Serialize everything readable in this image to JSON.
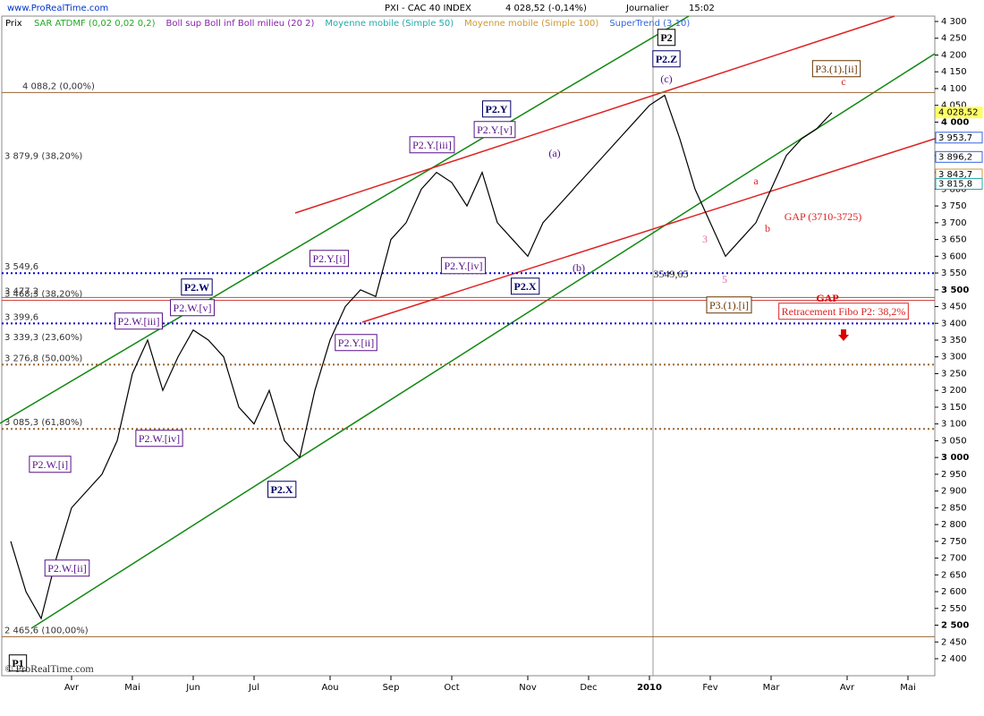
{
  "header": {
    "site": "www.ProRealTime.com",
    "title": "PXI - CAC 40 INDEX",
    "last": "4 028,52 (-0,14%)",
    "period": "Journalier",
    "time": "15:02"
  },
  "chart_data": {
    "type": "line",
    "indicators": [
      {
        "name": "SAR ATDMF (0,02 0,02 0,2)",
        "color": "#22aa22"
      },
      {
        "name": "Boll sup Boll inf Boll milieu (20 2)",
        "color": "#8822aa"
      },
      {
        "name": "Moyenne mobile (Simple 50)",
        "color": "#22aaaa"
      },
      {
        "name": "Moyenne mobile (Simple 100)",
        "color": "#cc9933"
      },
      {
        "name": "SuperTrend (3 10)",
        "color": "#3366dd"
      }
    ],
    "categories": [
      null,
      null,
      null,
      null,
      "Avr",
      null,
      null,
      null,
      "Mai",
      null,
      null,
      null,
      "Jun",
      null,
      null,
      null,
      "Jul",
      null,
      null,
      null,
      null,
      "Aou",
      null,
      null,
      null,
      "Sep",
      null,
      null,
      null,
      "Oct",
      null,
      null,
      null,
      null,
      "Nov",
      null,
      null,
      null,
      "Dec",
      null,
      null,
      null,
      "2010",
      null,
      null,
      null,
      "Fev",
      null,
      null,
      null,
      "Mar",
      null,
      null,
      null,
      null,
      "Avr",
      null,
      null,
      null,
      "Mai"
    ],
    "series": [
      {
        "name": "Prix",
        "color": "#000000",
        "values": [
          2750,
          2600,
          2520,
          2700,
          2850,
          2900,
          2950,
          3050,
          3250,
          3350,
          3200,
          3300,
          3380,
          3350,
          3300,
          3150,
          3100,
          3200,
          3050,
          3000,
          3200,
          3350,
          3450,
          3500,
          3480,
          3650,
          3700,
          3800,
          3850,
          3820,
          3750,
          3850,
          3700,
          3650,
          3600,
          3700,
          3750,
          3800,
          3850,
          3900,
          3950,
          4000,
          4050,
          4080,
          3950,
          3800,
          3700,
          3600,
          3650,
          3700,
          3800,
          3900,
          3950,
          3980,
          4028.52,
          null,
          null,
          null,
          null,
          null
        ]
      }
    ],
    "ylim": [
      2400,
      4300
    ],
    "yticks": [
      {
        "value": 2400,
        "label": "2 400"
      },
      {
        "value": 2450,
        "label": "2 450"
      },
      {
        "value": 2500,
        "label": "2 500"
      },
      {
        "value": 2550,
        "label": "2 550"
      },
      {
        "value": 2600,
        "label": "2 600"
      },
      {
        "value": 2650,
        "label": "2 650"
      },
      {
        "value": 2700,
        "label": "2 700"
      },
      {
        "value": 2750,
        "label": "2 750"
      },
      {
        "value": 2800,
        "label": "2 800"
      },
      {
        "value": 2850,
        "label": "2 850"
      },
      {
        "value": 2900,
        "label": "2 900"
      },
      {
        "value": 2950,
        "label": "2 950"
      },
      {
        "value": 3000,
        "label": "3 000"
      },
      {
        "value": 3050,
        "label": "3 050"
      },
      {
        "value": 3100,
        "label": "3 100"
      },
      {
        "value": 3150,
        "label": "3 150"
      },
      {
        "value": 3200,
        "label": "3 200"
      },
      {
        "value": 3250,
        "label": "3 250"
      },
      {
        "value": 3300,
        "label": "3 300"
      },
      {
        "value": 3350,
        "label": "3 350"
      },
      {
        "value": 3400,
        "label": "3 400"
      },
      {
        "value": 3450,
        "label": "3 450"
      },
      {
        "value": 3500,
        "label": "3 500"
      },
      {
        "value": 3550,
        "label": "3 550"
      },
      {
        "value": 3600,
        "label": "3 600"
      },
      {
        "value": 3650,
        "label": "3 650"
      },
      {
        "value": 3700,
        "label": "3 700"
      },
      {
        "value": 3750,
        "label": "3 750"
      },
      {
        "value": 3800,
        "label": "3 800"
      },
      {
        "value": 3850,
        "label": "3 850"
      },
      {
        "value": 3900,
        "label": "3 900"
      },
      {
        "value": 3950,
        "label": "3 950"
      },
      {
        "value": 4000,
        "label": "4 000"
      },
      {
        "value": 4050,
        "label": "4 050"
      },
      {
        "value": 4100,
        "label": "4 100"
      },
      {
        "value": 4150,
        "label": "4 150"
      },
      {
        "value": 4200,
        "label": "4 200"
      },
      {
        "value": 4250,
        "label": "4 250"
      },
      {
        "value": 4300,
        "label": "4 300"
      }
    ],
    "levels": [
      {
        "value": 4088.2,
        "label": "4 088,2 (0,00%)",
        "color": "#996633",
        "style": "solid"
      },
      {
        "value": 3879.9,
        "label": "3 879,9 (38,20%)",
        "color": "#996633",
        "style": "none"
      },
      {
        "value": 3549.6,
        "label": "3 549,6",
        "color": "#0000cc",
        "style": "dotted"
      },
      {
        "value": 3477.2,
        "label": "3 477,2",
        "color": "#996633",
        "style": "solid"
      },
      {
        "value": 3468.3,
        "label": "3 468,3 (38,20%)",
        "color": "#cc3333",
        "style": "solid"
      },
      {
        "value": 3399.6,
        "label": "3 399,6",
        "color": "#0000cc",
        "style": "dotted"
      },
      {
        "value": 3339.3,
        "label": "3 339,3 (23,60%)",
        "color": "#996633",
        "style": "none"
      },
      {
        "value": 3276.8,
        "label": "3 276,8 (50,00%)",
        "color": "#996633",
        "style": "dotted"
      },
      {
        "value": 3085.3,
        "label": "3 085,3 (61,80%)",
        "color": "#996633",
        "style": "dotted"
      },
      {
        "value": 2465.6,
        "label": "2 465,6 (100,00%)",
        "color": "#996633",
        "style": "solid"
      }
    ],
    "markers": [
      {
        "value": 4028.52,
        "label": "4 028,52",
        "color": "#ffff66"
      },
      {
        "value": 3953.7,
        "label": "3 953,7",
        "color": "#3366dd"
      },
      {
        "value": 3896.2,
        "label": "3 896,2",
        "color": "#3366dd"
      },
      {
        "value": 3843.7,
        "label": "3 843,7",
        "color": "#cc9933"
      },
      {
        "value": 3815.8,
        "label": "3 815,8",
        "color": "#22aaaa"
      }
    ],
    "annotations": [
      "P1",
      "P2.W.[i]",
      "P2.W.[ii]",
      "P2.W.[iii]",
      "P2.W.[iv]",
      "P2.W.[v]",
      "P2.W",
      "P2.X",
      "P2.Y.[i]",
      "P2.Y.[ii]",
      "P2.Y.[iii]",
      "P2.Y.[iv]",
      "P2.Y.[v]",
      "P2.Y",
      "P2.X",
      "P2.Z",
      "P2",
      "P3.(1).[i]",
      "P3.(1).[ii]",
      "(a)",
      "(b)",
      "(c)",
      "a",
      "b",
      "c",
      "3",
      "5",
      "GAP",
      "GAP (3710-3725)",
      "Retracement Fibo P2: 38,2%",
      "3549,65",
      "© ProRealTime.com"
    ]
  }
}
